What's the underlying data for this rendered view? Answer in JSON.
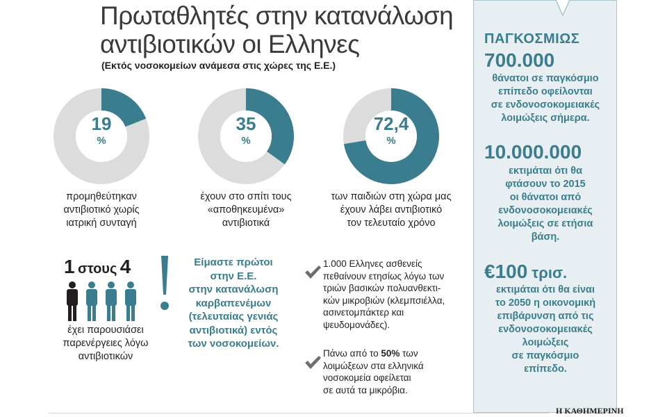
{
  "header": {
    "title_line1": "Πρωταθλητές στην κατανάλωση",
    "title_line2": "αντιβιοτικών οι Ελληνες",
    "subtitle": "(Εκτός νοσοκομείων ανάμεσα στις χώρες της Ε.Ε.)"
  },
  "colors": {
    "accent": "#3a7d8e",
    "track": "#dcdcdc",
    "sidebar_bg": "#e7eff2"
  },
  "donuts": [
    {
      "value": 19,
      "label": "19",
      "unit": "%",
      "caption": [
        "προμηθεύτηκαν",
        "αντιβιοτικό χωρίς",
        "ιατρική συνταγή"
      ]
    },
    {
      "value": 35,
      "label": "35",
      "unit": "%",
      "caption": [
        "έχουν στο σπίτι τους",
        "«αποθηκευμένα»",
        "αντιβιοτικά"
      ]
    },
    {
      "value": 72.4,
      "label": "72,4",
      "unit": "%",
      "caption": [
        "των παιδιών στη χώρα μας",
        "έχουν λάβει αντιβιοτικό",
        "τον τελευταίο χρόνο"
      ]
    }
  ],
  "ratio": {
    "one": "1",
    "word": "στους",
    "four": "4",
    "caption": [
      "έχει παρουσιάσει",
      "παρενέργειες λόγω",
      "αντιβιοτικών"
    ]
  },
  "callout": {
    "lines": [
      "Είμαστε πρώτοι",
      "στην Ε.Ε.",
      "στην κατανάλωση",
      "καρβαπενέμων",
      "(τελευταίας γενιάς",
      "αντιβιοτικά) εντός",
      "των νοσοκομείων."
    ]
  },
  "notes": {
    "first": [
      "1.000 Ελληνες ασθενείς",
      "πεθαίνουν ετησίως λόγω των",
      "τριών βασικών πολυανθεκτι-",
      "κών μικροβιών (κλεμπσιέλλα,",
      "ασινετομπάκτερ και",
      "ψευδομονάδες)."
    ],
    "second_prefix": "Πάνω από το ",
    "second_bold": "50%",
    "second_suffix": " των",
    "second_rest": [
      "λοιμώξεων στα ελληνικά",
      "νοσοκομεία οφείλεται",
      "σε αυτά τα μικρόβια."
    ]
  },
  "sidebar": {
    "heading": "ΠΑΓΚΟΣΜΙΩΣ",
    "stat1": "700.000",
    "text1": [
      "θάνατοι σε παγκόσμιο",
      "επίπεδο οφείλονται",
      "σε ενδονοσοκομειακές",
      "λοιμώξεις σήμερα."
    ],
    "stat2": "10.000.000",
    "text2": [
      "εκτιμάται ότι θα",
      "φτάσουν το 2015",
      "οι θάνατοι από",
      "ενδονοσοκομειακές",
      "λοιμώξεις σε ετήσια",
      "βάση."
    ],
    "stat3_main": "€100",
    "stat3_unit": " τρισ.",
    "text3": [
      "εκτιμάται ότι θα είναι",
      "το 2050 η οικονομική",
      "επιβάρυνση από τις",
      "ενδονοσοκομειακές",
      "λοιμώξεις",
      "σε παγκόσμιο",
      "επίπεδο."
    ]
  },
  "footer": {
    "brand": "Η ΚΑΘΗΜΕΡΙΝΗ"
  }
}
